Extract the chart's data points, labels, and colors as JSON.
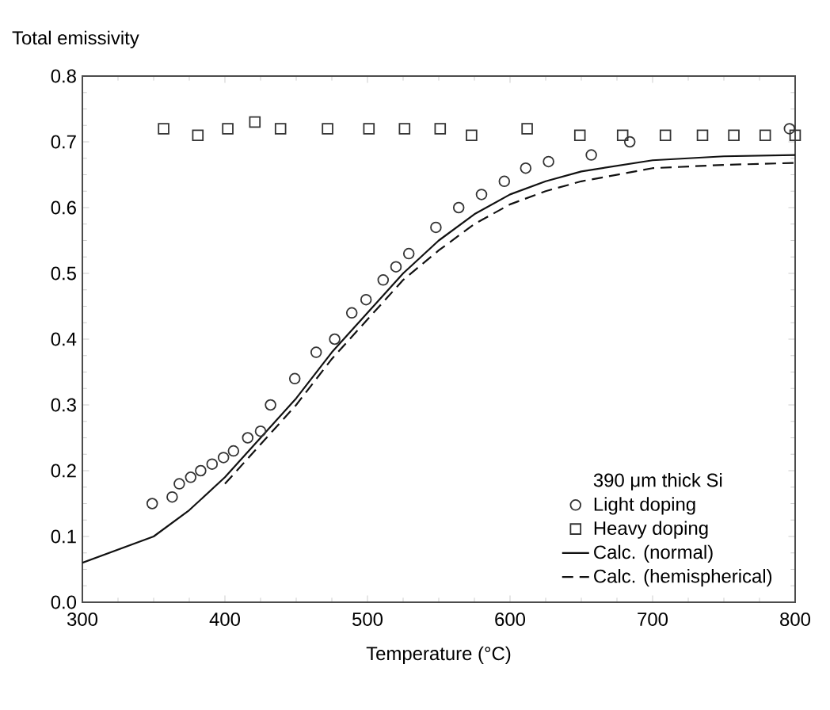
{
  "chart_data": {
    "type": "scatter",
    "xlabel": "Temperature (°C)",
    "ylabel": "Total emissivity",
    "legend_title": "390 μm thick Si",
    "legend": "bottom right",
    "grid": false,
    "xlim": [
      300,
      800
    ],
    "xticks": [
      300,
      400,
      500,
      600,
      700,
      800
    ],
    "ylim": [
      0,
      0.8
    ],
    "yticks": [
      {
        "value": 0,
        "label": "0.0"
      },
      0.1,
      0.2,
      0.3,
      0.4,
      0.5,
      0.6,
      0.7,
      0.8
    ],
    "series": [
      {
        "name": "Light doping",
        "marker": "circle",
        "color": "#333333",
        "x": [
          349,
          363,
          368,
          376,
          383,
          391,
          399,
          406,
          416,
          425,
          432,
          449,
          464,
          477,
          489,
          499,
          511,
          520,
          529,
          548,
          564,
          580,
          596,
          611,
          627,
          657,
          684,
          796
        ],
        "values": [
          0.15,
          0.16,
          0.18,
          0.19,
          0.2,
          0.21,
          0.22,
          0.23,
          0.25,
          0.26,
          0.3,
          0.34,
          0.38,
          0.4,
          0.44,
          0.46,
          0.49,
          0.51,
          0.53,
          0.57,
          0.6,
          0.62,
          0.64,
          0.66,
          0.67,
          0.68,
          0.7,
          0.72
        ]
      },
      {
        "name": "Heavy doping",
        "marker": "square",
        "color": "#333333",
        "x": [
          357,
          381,
          402,
          421,
          439,
          472,
          501,
          526,
          551,
          573,
          612,
          649,
          679,
          709,
          735,
          757,
          779,
          800
        ],
        "values": [
          0.72,
          0.71,
          0.72,
          0.73,
          0.72,
          0.72,
          0.72,
          0.72,
          0.72,
          0.71,
          0.72,
          0.71,
          0.71,
          0.71,
          0.71,
          0.71,
          0.71,
          0.71
        ]
      },
      {
        "name": "Calc. (normal)",
        "type": "line",
        "marker": "none",
        "line_style": "solid",
        "color": "#111111",
        "x": [
          300,
          325,
          350,
          375,
          400,
          425,
          450,
          475,
          500,
          525,
          550,
          575,
          600,
          625,
          650,
          700,
          750,
          800
        ],
        "values": [
          0.06,
          0.08,
          0.1,
          0.14,
          0.19,
          0.25,
          0.31,
          0.38,
          0.44,
          0.5,
          0.55,
          0.59,
          0.62,
          0.64,
          0.655,
          0.672,
          0.678,
          0.68
        ]
      },
      {
        "name": "Calc. (hemispherical)",
        "type": "line",
        "marker": "none",
        "line_style": "dashed",
        "color": "#111111",
        "x": [
          400,
          425,
          450,
          475,
          500,
          525,
          550,
          575,
          600,
          625,
          650,
          700,
          750,
          800
        ],
        "values": [
          0.18,
          0.24,
          0.3,
          0.37,
          0.43,
          0.49,
          0.535,
          0.575,
          0.605,
          0.625,
          0.64,
          0.66,
          0.665,
          0.668
        ]
      }
    ]
  }
}
